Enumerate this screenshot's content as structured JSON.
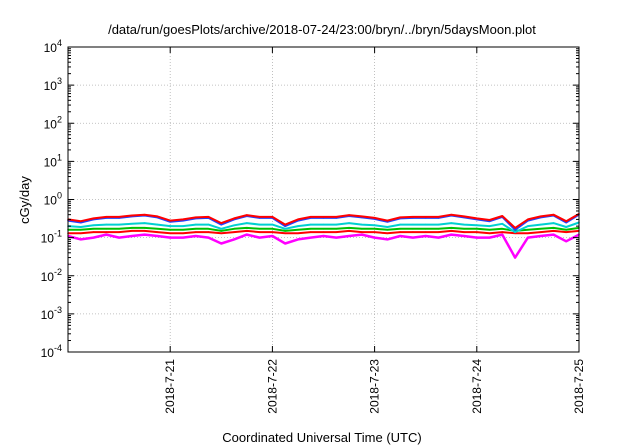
{
  "chart_data": {
    "type": "line",
    "title": "/data/run/goesPlots/archive/2018-07-24/23:00/bryn/../bryn/5daysMoon.plot",
    "xlabel": "Coordinated Universal Time (UTC)",
    "ylabel": "cGy/day",
    "yscale": "log",
    "ylim": [
      0.0001,
      10000
    ],
    "xlim": [
      "2018-07-20T00:00",
      "2018-07-25T00:00"
    ],
    "y_ticks": [
      {
        "base": "10",
        "exp": "-4"
      },
      {
        "base": "10",
        "exp": "-3"
      },
      {
        "base": "10",
        "exp": "-2"
      },
      {
        "base": "10",
        "exp": "-1"
      },
      {
        "base": "10",
        "exp": "0"
      },
      {
        "base": "10",
        "exp": "1"
      },
      {
        "base": "10",
        "exp": "2"
      },
      {
        "base": "10",
        "exp": "3"
      },
      {
        "base": "10",
        "exp": "4"
      }
    ],
    "x_ticks": [
      "2018-7-21",
      "2018-7-22",
      "2018-7-23",
      "2018-7-24",
      "2018-7-25"
    ],
    "grid": true,
    "legend": "none",
    "x": [
      "2018-07-20T00:00",
      "2018-07-20T03:00",
      "2018-07-20T06:00",
      "2018-07-20T09:00",
      "2018-07-20T12:00",
      "2018-07-20T15:00",
      "2018-07-20T18:00",
      "2018-07-20T21:00",
      "2018-07-21T00:00",
      "2018-07-21T03:00",
      "2018-07-21T06:00",
      "2018-07-21T09:00",
      "2018-07-21T12:00",
      "2018-07-21T15:00",
      "2018-07-21T18:00",
      "2018-07-21T21:00",
      "2018-07-22T00:00",
      "2018-07-22T03:00",
      "2018-07-22T06:00",
      "2018-07-22T09:00",
      "2018-07-22T12:00",
      "2018-07-22T15:00",
      "2018-07-22T18:00",
      "2018-07-22T21:00",
      "2018-07-23T00:00",
      "2018-07-23T03:00",
      "2018-07-23T06:00",
      "2018-07-23T09:00",
      "2018-07-23T12:00",
      "2018-07-23T15:00",
      "2018-07-23T18:00",
      "2018-07-23T21:00",
      "2018-07-24T00:00",
      "2018-07-24T03:00",
      "2018-07-24T06:00",
      "2018-07-24T09:00",
      "2018-07-24T12:00",
      "2018-07-24T15:00",
      "2018-07-24T18:00",
      "2018-07-24T21:00",
      "2018-07-25T00:00"
    ],
    "series": [
      {
        "color": "#ff00ff",
        "values": [
          0.11,
          0.09,
          0.1,
          0.12,
          0.1,
          0.11,
          0.12,
          0.11,
          0.1,
          0.1,
          0.11,
          0.1,
          0.07,
          0.09,
          0.12,
          0.1,
          0.11,
          0.07,
          0.09,
          0.1,
          0.11,
          0.1,
          0.11,
          0.12,
          0.1,
          0.09,
          0.11,
          0.1,
          0.11,
          0.1,
          0.12,
          0.11,
          0.1,
          0.1,
          0.12,
          0.03,
          0.1,
          0.11,
          0.12,
          0.08,
          0.12
        ]
      },
      {
        "color": "#ff0000",
        "values": [
          0.13,
          0.13,
          0.14,
          0.14,
          0.14,
          0.15,
          0.15,
          0.14,
          0.13,
          0.13,
          0.14,
          0.14,
          0.13,
          0.14,
          0.15,
          0.14,
          0.14,
          0.13,
          0.13,
          0.14,
          0.14,
          0.14,
          0.15,
          0.14,
          0.14,
          0.13,
          0.14,
          0.14,
          0.14,
          0.14,
          0.15,
          0.14,
          0.14,
          0.13,
          0.14,
          0.13,
          0.13,
          0.14,
          0.15,
          0.14,
          0.15
        ]
      },
      {
        "color": "#00c000",
        "values": [
          0.16,
          0.16,
          0.17,
          0.17,
          0.17,
          0.18,
          0.18,
          0.17,
          0.16,
          0.16,
          0.17,
          0.17,
          0.15,
          0.17,
          0.18,
          0.17,
          0.17,
          0.15,
          0.16,
          0.17,
          0.17,
          0.17,
          0.18,
          0.17,
          0.17,
          0.16,
          0.17,
          0.17,
          0.17,
          0.17,
          0.18,
          0.17,
          0.17,
          0.16,
          0.17,
          0.15,
          0.16,
          0.17,
          0.18,
          0.16,
          0.18
        ]
      },
      {
        "color": "#00d0d0",
        "values": [
          0.2,
          0.19,
          0.21,
          0.22,
          0.22,
          0.23,
          0.24,
          0.22,
          0.2,
          0.2,
          0.22,
          0.22,
          0.17,
          0.21,
          0.24,
          0.22,
          0.22,
          0.17,
          0.2,
          0.22,
          0.22,
          0.22,
          0.24,
          0.22,
          0.21,
          0.19,
          0.22,
          0.22,
          0.22,
          0.22,
          0.24,
          0.22,
          0.21,
          0.2,
          0.23,
          0.14,
          0.2,
          0.22,
          0.24,
          0.19,
          0.25
        ]
      },
      {
        "color": "#2040ff",
        "values": [
          0.28,
          0.25,
          0.3,
          0.33,
          0.33,
          0.36,
          0.38,
          0.34,
          0.26,
          0.28,
          0.32,
          0.33,
          0.22,
          0.3,
          0.37,
          0.33,
          0.33,
          0.2,
          0.28,
          0.33,
          0.33,
          0.33,
          0.37,
          0.34,
          0.31,
          0.26,
          0.32,
          0.33,
          0.33,
          0.33,
          0.38,
          0.34,
          0.3,
          0.27,
          0.35,
          0.16,
          0.28,
          0.34,
          0.38,
          0.25,
          0.4
        ]
      },
      {
        "color": "#ff0000",
        "values": [
          0.3,
          0.27,
          0.32,
          0.35,
          0.35,
          0.38,
          0.4,
          0.36,
          0.28,
          0.3,
          0.34,
          0.35,
          0.24,
          0.32,
          0.39,
          0.35,
          0.35,
          0.22,
          0.3,
          0.35,
          0.35,
          0.35,
          0.39,
          0.36,
          0.33,
          0.28,
          0.34,
          0.35,
          0.35,
          0.35,
          0.4,
          0.36,
          0.32,
          0.29,
          0.37,
          0.18,
          0.3,
          0.36,
          0.4,
          0.27,
          0.42
        ]
      }
    ]
  }
}
